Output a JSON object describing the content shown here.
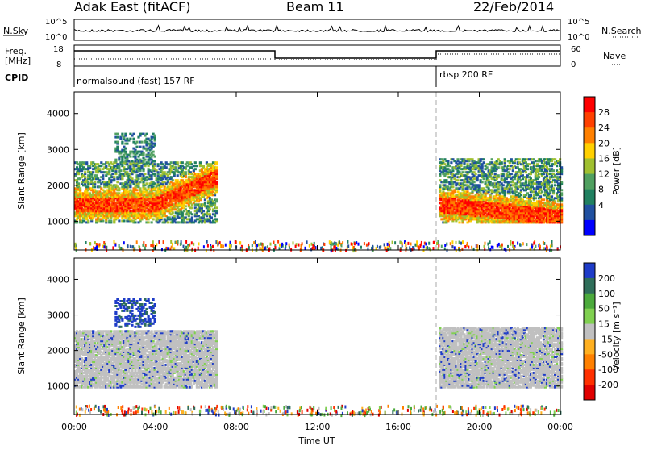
{
  "header": {
    "title_left": "Adak East (fitACF)",
    "title_center": "Beam 11",
    "title_right": "22/Feb/2014"
  },
  "top_panels": {
    "nsky": {
      "label": "N.Sky",
      "ticks_left": [
        "10^5",
        "10^0"
      ],
      "ticks_right": [
        "10^5",
        "10^0"
      ],
      "right_label": "N.Search"
    },
    "freq": {
      "label_line1": "Freq.",
      "label_line2": "[MHz]",
      "ticks_left": [
        "18",
        "8"
      ],
      "ticks_right": [
        "60",
        "0"
      ],
      "right_label": "Nave"
    },
    "cpid": {
      "label": "CPID",
      "entries": [
        "normalsound (fast) 157 RF",
        "rbsp 200 RF"
      ]
    }
  },
  "chart_data": [
    {
      "type": "heatmap",
      "title": "",
      "ylabel": "Slant Range [km]",
      "xlabel": "",
      "x_range_hours": [
        0,
        24
      ],
      "ylim": [
        200,
        4600
      ],
      "yticks": [
        "1000",
        "2000",
        "3000",
        "4000"
      ],
      "colorbar": {
        "label": "Power [dB]",
        "ticks": [
          "28",
          "24",
          "20",
          "16",
          "12",
          "8",
          "4"
        ],
        "colors": [
          "#ff0000",
          "#ff4000",
          "#ff8000",
          "#ffd000",
          "#a0c030",
          "#50a060",
          "#208060",
          "#2050a0",
          "#0000ff"
        ]
      },
      "echo_regions": [
        {
          "t_start": 0.0,
          "t_end": 7.0,
          "r_low": 1000,
          "r_high": 2700,
          "level": "strong"
        },
        {
          "t_start": 2.0,
          "t_end": 4.0,
          "r_low": 2700,
          "r_high": 3500,
          "level": "weak"
        },
        {
          "t_start": 18.0,
          "t_end": 24.0,
          "r_low": 1000,
          "r_high": 2800,
          "level": "strong"
        }
      ]
    },
    {
      "type": "heatmap",
      "title": "",
      "ylabel": "Slant Range [km]",
      "xlabel": "Time UT",
      "x_range_hours": [
        0,
        24
      ],
      "ylim": [
        200,
        4600
      ],
      "yticks": [
        "1000",
        "2000",
        "3000",
        "4000"
      ],
      "xticks": [
        "00:00",
        "04:00",
        "08:00",
        "12:00",
        "16:00",
        "20:00",
        "00:00"
      ],
      "colorbar": {
        "label": "Velocity [m s⁻¹]",
        "ticks": [
          "200",
          "100",
          "50",
          "15",
          "-15",
          "-50",
          "-100",
          "-200"
        ],
        "colors": [
          "#1e3cc8",
          "#2f6e5a",
          "#4caa3c",
          "#80d050",
          "#c0c0c0",
          "#ffb020",
          "#ff8000",
          "#ff3000",
          "#e00000"
        ]
      },
      "echo_regions": [
        {
          "t_start": 0.0,
          "t_end": 7.0,
          "r_low": 1000,
          "r_high": 2600,
          "level": "ground"
        },
        {
          "t_start": 2.0,
          "t_end": 4.0,
          "r_low": 2700,
          "r_high": 3500,
          "level": "positive"
        },
        {
          "t_start": 18.0,
          "t_end": 24.0,
          "r_low": 1000,
          "r_high": 2700,
          "level": "ground"
        }
      ]
    }
  ]
}
